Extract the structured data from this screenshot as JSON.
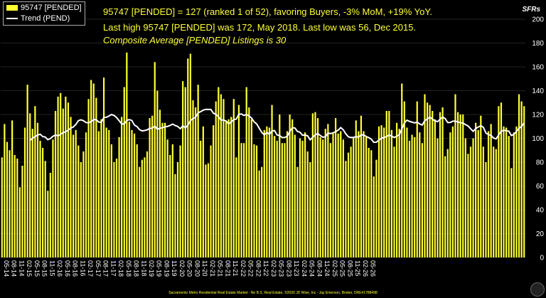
{
  "header": {
    "line1": "95747 [PENDED] = 127 (ranked 1 of 52), favoring Buyers, -3% MoM, +19% YoY.",
    "line2": "Last high 95747 [PENDED] was 172, May 2018. Last low was 56, Dec 2015.",
    "line3": "Composite Average [PENDED] Listings is 30"
  },
  "footer": "Sacramento Metro Residential Real Estate Market - No B.S. Real Estate, ©2026 JD Wise, Inc - Jay Emerson, Broker, DRE#1788498",
  "colors": {
    "bar": "#ffff33",
    "trend": "#ffffff",
    "grid": "#444444",
    "background": "#000000",
    "text": "#ffff33"
  },
  "chart_data": {
    "type": "bar",
    "ylabel": "SFRs",
    "ylim": [
      0,
      200
    ],
    "yticks": [
      0,
      20,
      40,
      60,
      80,
      100,
      120,
      140,
      160,
      180,
      200
    ],
    "grid": true,
    "legend_position": "top-left",
    "start_month": "2014-05",
    "x_tick_labels": [
      "05-14",
      "08-14",
      "11-14",
      "02-15",
      "05-15",
      "08-15",
      "11-15",
      "02-16",
      "05-16",
      "08-16",
      "11-16",
      "02-17",
      "05-17",
      "08-17",
      "11-17",
      "02-18",
      "05-18",
      "08-18",
      "11-18",
      "02-19",
      "05-19",
      "08-19",
      "11-19",
      "02-20",
      "05-20",
      "08-20",
      "11-20",
      "02-21",
      "05-21",
      "08-21",
      "11-21",
      "02-22",
      "05-22",
      "08-22",
      "11-22",
      "02-23",
      "05-23",
      "08-23",
      "11-23",
      "02-24",
      "05-24",
      "08-24",
      "11-24",
      "02-25",
      "05-25",
      "08-25",
      "11-25",
      "02-26",
      "05-26"
    ],
    "series": [
      {
        "name": "95747 [PENDED]",
        "values": [
          84,
          112,
          97,
          90,
          115,
          86,
          83,
          59,
          77,
          109,
          145,
          121,
          108,
          127,
          113,
          98,
          92,
          81,
          56,
          71,
          99,
          123,
          135,
          138,
          125,
          135,
          130,
          118,
          103,
          107,
          94,
          80,
          89,
          105,
          133,
          149,
          146,
          134,
          106,
          116,
          151,
          109,
          107,
          95,
          80,
          83,
          101,
          118,
          143,
          172,
          114,
          107,
          104,
          95,
          76,
          82,
          84,
          89,
          117,
          119,
          164,
          140,
          124,
          113,
          113,
          99,
          86,
          95,
          70,
          80,
          94,
          148,
          143,
          167,
          171,
          132,
          126,
          145,
          98,
          110,
          78,
          79,
          94,
          111,
          131,
          143,
          137,
          133,
          115,
          116,
          118,
          133,
          84,
          128,
          96,
          96,
          143,
          126,
          116,
          95,
          94,
          73,
          76,
          107,
          110,
          109,
          128,
          102,
          98,
          120,
          96,
          96,
          106,
          120,
          116,
          103,
          76,
          100,
          98,
          105,
          89,
          80,
          121,
          122,
          117,
          101,
          99,
          108,
          112,
          96,
          105,
          117,
          104,
          106,
          99,
          81,
          88,
          93,
          101,
          115,
          106,
          119,
          106,
          101,
          92,
          90,
          68,
          82,
          110,
          111,
          109,
          123,
          123,
          107,
          93,
          113,
          108,
          146,
          131,
          109,
          98,
          103,
          101,
          131,
          105,
          96,
          137,
          130,
          128,
          123,
          116,
          100,
          122,
          126,
          85,
          91,
          105,
          110,
          137,
          122,
          120,
          120,
          100,
          87,
          93,
          100,
          113,
          107,
          119,
          93,
          80,
          106,
          112,
          93,
          91,
          127,
          130,
          110,
          109,
          102,
          75,
          105,
          110,
          137,
          131,
          127
        ]
      },
      {
        "name": "Trend (PEND)",
        "values": []
      }
    ]
  }
}
